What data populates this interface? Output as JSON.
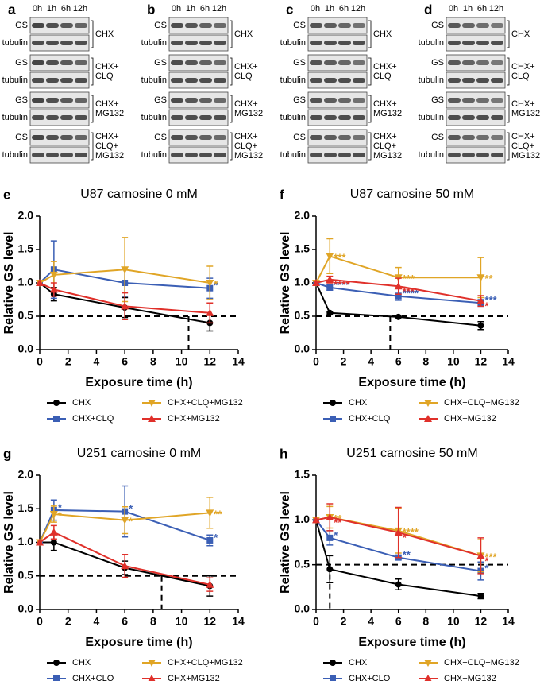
{
  "blots": {
    "panels": [
      {
        "letter": "a",
        "times": [
          "0h",
          "1h",
          "6h",
          "12h"
        ],
        "groups": [
          {
            "rows": [
              "GS",
              "tubulin"
            ],
            "condition": [
              "CHX"
            ]
          },
          {
            "rows": [
              "GS",
              "tubulin"
            ],
            "condition": [
              "CHX+",
              "CLQ"
            ]
          },
          {
            "rows": [
              "GS",
              "tubulin"
            ],
            "condition": [
              "CHX+",
              "MG132"
            ]
          },
          {
            "rows": [
              "GS",
              "tubulin"
            ],
            "condition": [
              "CHX+",
              "CLQ+",
              "MG132"
            ]
          }
        ]
      },
      {
        "letter": "b",
        "times": [
          "0h",
          "1h",
          "6h",
          "12h"
        ],
        "groups": [
          {
            "rows": [
              "GS",
              "tubulin"
            ],
            "condition": [
              "CHX"
            ]
          },
          {
            "rows": [
              "GS",
              "tubulin"
            ],
            "condition": [
              "CHX+",
              "CLQ"
            ]
          },
          {
            "rows": [
              "GS",
              "tubulin"
            ],
            "condition": [
              "CHX+",
              "MG132"
            ]
          },
          {
            "rows": [
              "GS",
              "tubulin"
            ],
            "condition": [
              "CHX+",
              "CLQ+",
              "MG132"
            ]
          }
        ]
      },
      {
        "letter": "c",
        "times": [
          "0h",
          "1h",
          "6h",
          "12h"
        ],
        "groups": [
          {
            "rows": [
              "GS",
              "tubulin"
            ],
            "condition": [
              "CHX"
            ]
          },
          {
            "rows": [
              "GS",
              "tubulin"
            ],
            "condition": [
              "CHX+",
              "CLQ"
            ]
          },
          {
            "rows": [
              "GS",
              "tubulin"
            ],
            "condition": [
              "CHX+",
              "MG132"
            ]
          },
          {
            "rows": [
              "GS",
              "tubulin"
            ],
            "condition": [
              "CHX+",
              "CLQ+",
              "MG132"
            ]
          }
        ]
      },
      {
        "letter": "d",
        "times": [
          "0h",
          "1h",
          "6h",
          "12h"
        ],
        "groups": [
          {
            "rows": [
              "GS",
              "tubulin"
            ],
            "condition": [
              "CHX"
            ]
          },
          {
            "rows": [
              "GS",
              "tubulin"
            ],
            "condition": [
              "CHX+",
              "CLQ"
            ]
          },
          {
            "rows": [
              "GS",
              "tubulin"
            ],
            "condition": [
              "CHX+",
              "MG132"
            ]
          },
          {
            "rows": [
              "GS",
              "tubulin"
            ],
            "condition": [
              "CHX+",
              "CLQ+",
              "MG132"
            ]
          }
        ]
      }
    ]
  },
  "chart_data": [
    {
      "type": "line",
      "panel_label": "e",
      "title": "U87 carnosine 0 mM",
      "x_label": "Exposure time (h)",
      "y_label": "Relative GS level",
      "x": [
        0,
        1,
        6,
        12
      ],
      "xlim": [
        0,
        14
      ],
      "xticks": [
        0,
        2,
        4,
        6,
        8,
        10,
        12,
        14
      ],
      "ylim": [
        0,
        2
      ],
      "yticks": [
        {
          "value": 0,
          "label": "0.0"
        },
        {
          "value": 0.5,
          "label": "0.5"
        },
        {
          "value": 1,
          "label": "1.0"
        },
        {
          "value": 1.5,
          "label": "1.5"
        },
        {
          "value": 2,
          "label": "2.0"
        }
      ],
      "hline": 0.5,
      "vline": 10.5,
      "legend": "bottom",
      "series": [
        {
          "name": "CHX",
          "color": "#000000",
          "marker": "circle",
          "values": [
            1,
            0.83,
            0.63,
            0.4
          ],
          "errors": [
            0,
            0.1,
            0.15,
            0.12
          ],
          "annotations": [
            null,
            null,
            null,
            null
          ]
        },
        {
          "name": "CHX+CLQ",
          "color": "#3b5fb5",
          "marker": "square",
          "values": [
            1,
            1.2,
            1.0,
            0.92
          ],
          "errors": [
            0,
            0.43,
            0.2,
            0.15
          ],
          "annotations": [
            null,
            null,
            null,
            "*"
          ]
        },
        {
          "name": "CHX+CLQ+MG132",
          "color": "#e0a526",
          "marker": "triangle-down",
          "values": [
            1,
            1.12,
            1.2,
            1.0
          ],
          "errors": [
            0,
            0.2,
            0.48,
            0.25
          ],
          "annotations": [
            null,
            null,
            null,
            "*"
          ]
        },
        {
          "name": "CHX+MG132",
          "color": "#e0302a",
          "marker": "triangle-up",
          "values": [
            1,
            0.9,
            0.65,
            0.55
          ],
          "errors": [
            0,
            0.1,
            0.2,
            0.15
          ],
          "annotations": [
            null,
            null,
            null,
            null
          ]
        }
      ]
    },
    {
      "type": "line",
      "panel_label": "f",
      "title": "U87 carnosine 50 mM",
      "x_label": "Exposure time (h)",
      "y_label": "Relative GS level",
      "x": [
        0,
        1,
        6,
        12
      ],
      "xlim": [
        0,
        14
      ],
      "xticks": [
        0,
        2,
        4,
        6,
        8,
        10,
        12,
        14
      ],
      "ylim": [
        0,
        2
      ],
      "yticks": [
        {
          "value": 0,
          "label": "0.0"
        },
        {
          "value": 0.5,
          "label": "0.5"
        },
        {
          "value": 1,
          "label": "1.0"
        },
        {
          "value": 1.5,
          "label": "1.5"
        },
        {
          "value": 2,
          "label": "2.0"
        }
      ],
      "hline": 0.5,
      "vline": 5.4,
      "legend": "bottom",
      "series": [
        {
          "name": "CHX",
          "color": "#000000",
          "marker": "circle",
          "values": [
            1,
            0.55,
            0.49,
            0.36
          ],
          "errors": [
            0,
            0.02,
            0.01,
            0.06
          ],
          "annotations": [
            null,
            null,
            null,
            null
          ]
        },
        {
          "name": "CHX+CLQ",
          "color": "#3b5fb5",
          "marker": "square",
          "values": [
            1,
            0.93,
            0.8,
            0.7
          ],
          "errors": [
            0,
            0.04,
            0.06,
            0.05
          ],
          "annotations": [
            null,
            "****",
            "****",
            "***"
          ]
        },
        {
          "name": "CHX+CLQ+MG132",
          "color": "#e0a526",
          "marker": "triangle-down",
          "values": [
            1,
            1.4,
            1.08,
            1.08
          ],
          "errors": [
            0,
            0.26,
            0.15,
            0.3
          ],
          "annotations": [
            null,
            "***",
            "***",
            "**"
          ]
        },
        {
          "name": "CHX+MG132",
          "color": "#e0302a",
          "marker": "triangle-up",
          "values": [
            1,
            1.05,
            0.95,
            0.73
          ],
          "errors": [
            0,
            0.05,
            0.12,
            0.08
          ],
          "annotations": [
            null,
            "****",
            "***",
            "*"
          ]
        }
      ]
    },
    {
      "type": "line",
      "panel_label": "g",
      "title": "U251 carnosine 0 mM",
      "x_label": "Exposure time (h)",
      "y_label": "Relative GS level",
      "x": [
        0,
        1,
        6,
        12
      ],
      "xlim": [
        0,
        14
      ],
      "xticks": [
        0,
        2,
        4,
        6,
        8,
        10,
        12,
        14
      ],
      "ylim": [
        0,
        2
      ],
      "yticks": [
        {
          "value": 0,
          "label": "0.0"
        },
        {
          "value": 0.5,
          "label": "0.5"
        },
        {
          "value": 1,
          "label": "1.0"
        },
        {
          "value": 1.5,
          "label": "1.5"
        },
        {
          "value": 2,
          "label": "2.0"
        }
      ],
      "hline": 0.5,
      "vline": 8.6,
      "legend": "bottom",
      "series": [
        {
          "name": "CHX",
          "color": "#000000",
          "marker": "circle",
          "values": [
            1,
            1.0,
            0.62,
            0.35
          ],
          "errors": [
            0,
            0.12,
            0.1,
            0.15
          ],
          "annotations": [
            null,
            null,
            null,
            null
          ]
        },
        {
          "name": "CHX+CLQ",
          "color": "#3b5fb5",
          "marker": "square",
          "values": [
            1,
            1.48,
            1.46,
            1.03
          ],
          "errors": [
            0,
            0.15,
            0.38,
            0.08
          ],
          "annotations": [
            null,
            "*",
            "*",
            "*"
          ]
        },
        {
          "name": "CHX+CLQ+MG132",
          "color": "#e0a526",
          "marker": "triangle-down",
          "values": [
            1,
            1.42,
            1.33,
            1.44
          ],
          "errors": [
            0,
            0.12,
            0.2,
            0.23
          ],
          "annotations": [
            null,
            "*",
            "*",
            "**"
          ]
        },
        {
          "name": "CHX+MG132",
          "color": "#e0302a",
          "marker": "triangle-up",
          "values": [
            1,
            1.15,
            0.65,
            0.37
          ],
          "errors": [
            0,
            0.1,
            0.17,
            0.1
          ],
          "annotations": [
            null,
            null,
            null,
            null
          ]
        }
      ]
    },
    {
      "type": "line",
      "panel_label": "h",
      "title": "U251 carnosine 50 mM",
      "x_label": "Exposure time (h)",
      "y_label": "Relative GS level",
      "x": [
        0,
        1,
        6,
        12
      ],
      "xlim": [
        0,
        14
      ],
      "xticks": [
        0,
        2,
        4,
        6,
        8,
        10,
        12,
        14
      ],
      "ylim": [
        0,
        1.5
      ],
      "yticks": [
        {
          "value": 0,
          "label": "0.0"
        },
        {
          "value": 0.5,
          "label": "0.5"
        },
        {
          "value": 1,
          "label": "1.0"
        },
        {
          "value": 1.5,
          "label": "1.5"
        }
      ],
      "hline": 0.5,
      "vline": 1.0,
      "legend": "bottom",
      "series": [
        {
          "name": "CHX",
          "color": "#000000",
          "marker": "circle",
          "values": [
            1,
            0.45,
            0.28,
            0.15
          ],
          "errors": [
            0,
            0.15,
            0.06,
            0.03
          ],
          "annotations": [
            null,
            null,
            null,
            null
          ]
        },
        {
          "name": "CHX+CLQ",
          "color": "#3b5fb5",
          "marker": "square",
          "values": [
            1,
            0.8,
            0.58,
            0.43
          ],
          "errors": [
            0,
            0.08,
            0.02,
            0.1
          ],
          "annotations": [
            null,
            "*",
            "**",
            "*"
          ]
        },
        {
          "name": "CHX+CLQ+MG132",
          "color": "#e0a526",
          "marker": "triangle-down",
          "values": [
            1,
            1.03,
            0.88,
            0.6
          ],
          "errors": [
            0,
            0.12,
            0.25,
            0.18
          ],
          "annotations": [
            null,
            "**",
            "****",
            "***"
          ]
        },
        {
          "name": "CHX+MG132",
          "color": "#e0302a",
          "marker": "triangle-up",
          "values": [
            1,
            1.03,
            0.86,
            0.6
          ],
          "errors": [
            0,
            0.15,
            0.28,
            0.2
          ],
          "annotations": [
            null,
            "**",
            "*",
            "*"
          ]
        }
      ]
    }
  ]
}
